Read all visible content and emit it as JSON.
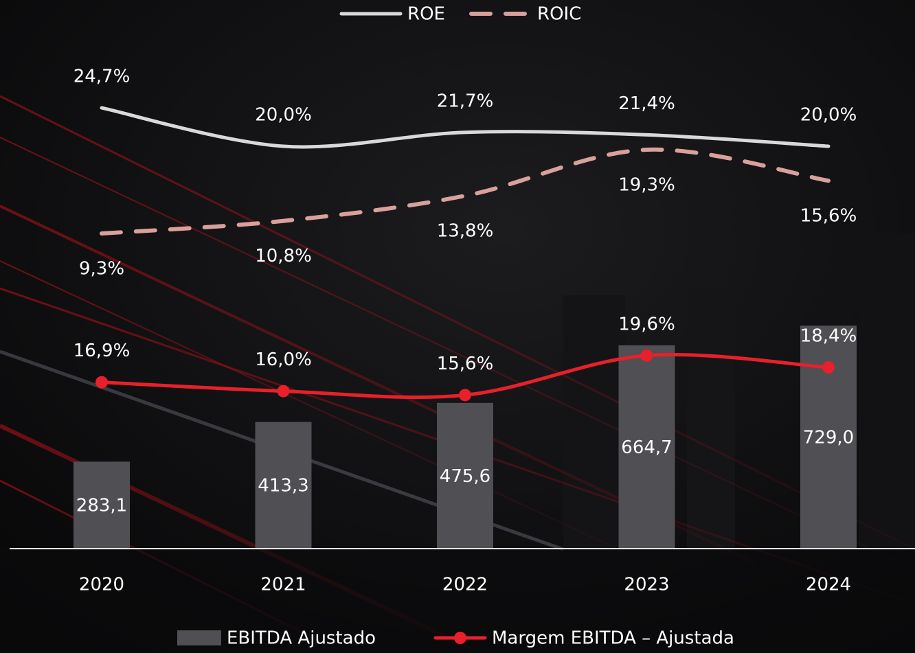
{
  "chart_data": {
    "type": "combo",
    "categories": [
      "2020",
      "2021",
      "2022",
      "2023",
      "2024"
    ],
    "series": [
      {
        "name": "EBITDA Ajustado",
        "type": "bar",
        "color": "#4f4f54",
        "values": [
          283.1,
          413.3,
          475.6,
          664.7,
          729.0
        ],
        "value_labels": [
          "283,1",
          "413,3",
          "475,6",
          "664,7",
          "729,0"
        ]
      },
      {
        "name": "Margem EBITDA – Ajustada",
        "type": "line",
        "color": "#e8202a",
        "markers": true,
        "values": [
          16.9,
          16.0,
          15.6,
          19.6,
          18.4
        ],
        "value_labels": [
          "16,9%",
          "16,0%",
          "15,6%",
          "19,6%",
          "18,4%"
        ]
      },
      {
        "name": "ROE",
        "type": "line",
        "color": "#d9d9d9",
        "values": [
          24.7,
          20.0,
          21.7,
          21.4,
          20.0
        ],
        "value_labels": [
          "24,7%",
          "20,0%",
          "21,7%",
          "21,4%",
          "20,0%"
        ]
      },
      {
        "name": "ROIC",
        "type": "line",
        "color": "#d9a09c",
        "dashed": true,
        "values": [
          9.3,
          10.8,
          13.8,
          19.3,
          15.6
        ],
        "value_labels": [
          "9,3%",
          "10,8%",
          "13,8%",
          "19,3%",
          "15,6%"
        ]
      }
    ]
  }
}
